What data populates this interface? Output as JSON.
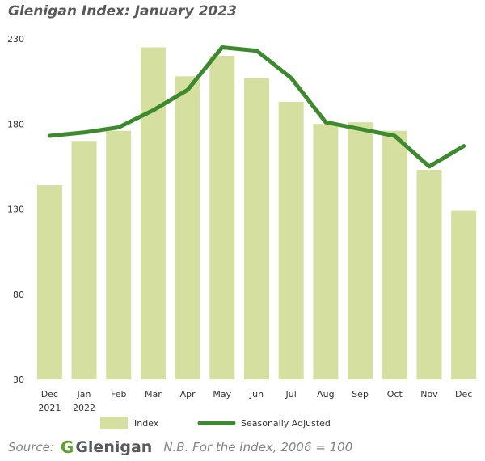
{
  "title": "Glenigan Index: January 2023",
  "chart_data": {
    "type": "bar",
    "categories": [
      [
        "Dec",
        "2021"
      ],
      [
        "Jan",
        "2022"
      ],
      [
        "Feb"
      ],
      [
        "Mar"
      ],
      [
        "Apr"
      ],
      [
        "May"
      ],
      [
        "Jun"
      ],
      [
        "Jul"
      ],
      [
        "Aug"
      ],
      [
        "Sep"
      ],
      [
        "Oct"
      ],
      [
        "Nov"
      ],
      [
        "Dec"
      ]
    ],
    "series": [
      {
        "name": "Index",
        "type": "bar",
        "color": "#d4dfa0",
        "values": [
          144,
          170,
          176,
          225,
          208,
          220,
          207,
          193,
          180,
          181,
          176,
          153,
          129
        ]
      },
      {
        "name": "Seasonally Adjusted",
        "type": "line",
        "color": "#3d8a2e",
        "values": [
          173,
          175,
          178,
          188,
          200,
          225,
          223,
          207,
          181,
          177,
          173,
          155,
          167
        ]
      }
    ],
    "ylim": [
      30,
      230
    ],
    "yticks": [
      30,
      80,
      130,
      180,
      230
    ],
    "grid": false,
    "legend": "bottom"
  },
  "footer": {
    "source_label": "Source:",
    "logo_mark": "G",
    "logo_word": "Glenigan",
    "note": "N.B. For the Index, 2006 = 100"
  }
}
